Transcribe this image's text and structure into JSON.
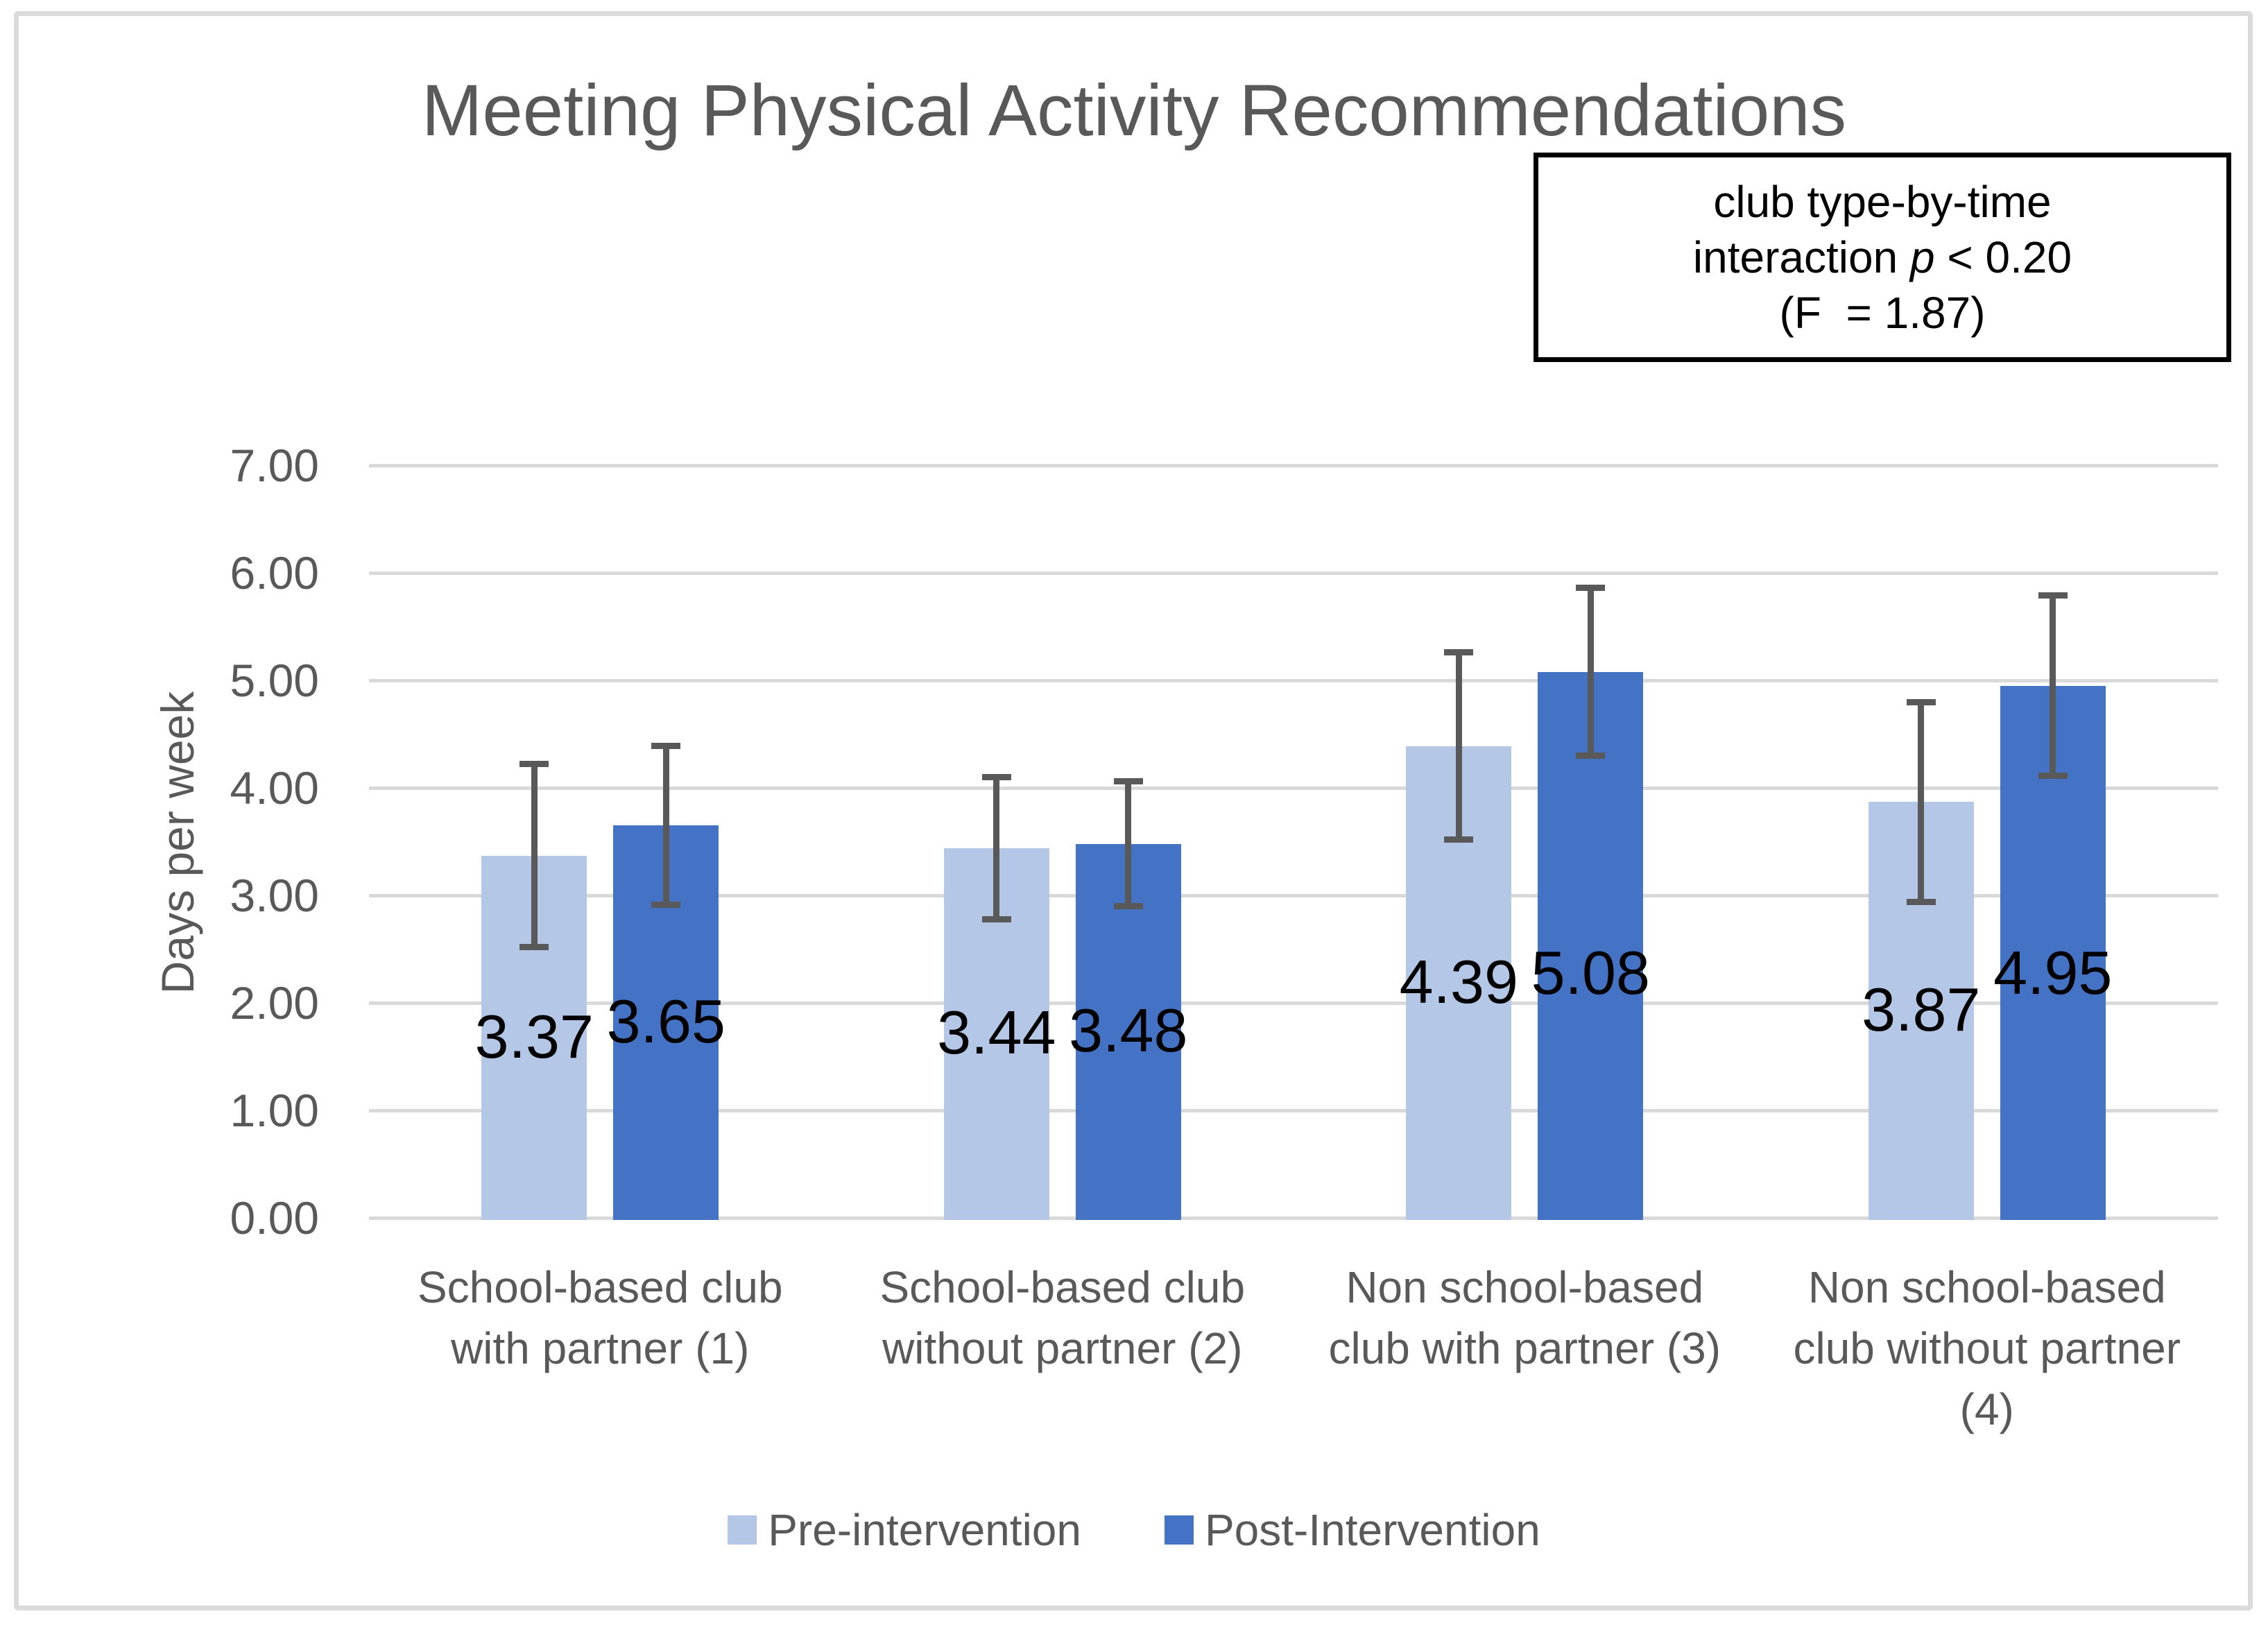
{
  "title": "Meeting Physical Activity Recommendations",
  "annotation": {
    "line1": "club type-by-time",
    "line2_pre": "interaction ",
    "line2_italic": "p",
    "line2_post": " < 0.20",
    "line3": "(F  = 1.87)"
  },
  "chart_data": {
    "type": "bar",
    "title": "Meeting Physical Activity Recommendations",
    "xlabel": "",
    "ylabel": "Days per week",
    "ylim": [
      0,
      7
    ],
    "ytick_labels": [
      "0.00",
      "1.00",
      "2.00",
      "3.00",
      "4.00",
      "5.00",
      "6.00",
      "7.00"
    ],
    "grid": true,
    "legend_position": "bottom",
    "categories": [
      "School-based club with partner (1)",
      "School-based club without partner (2)",
      "Non school-based club with partner (3)",
      "Non school-based club without partner (4)"
    ],
    "categories_wrapped": [
      [
        "School-based club",
        "with partner (1)"
      ],
      [
        "School-based club",
        "without partner (2)"
      ],
      [
        "Non school-based",
        "club with partner (3)"
      ],
      [
        "Non school-based",
        "club without partner",
        "(4)"
      ]
    ],
    "series": [
      {
        "name": "Pre-intervention",
        "color": "#B4C7E7",
        "values": [
          3.37,
          3.44,
          4.39,
          3.87
        ],
        "errors": [
          0.85,
          0.66,
          0.87,
          0.93
        ]
      },
      {
        "name": "Post-Intervention",
        "color": "#4472C4",
        "values": [
          3.65,
          3.48,
          5.08,
          4.95
        ],
        "errors": [
          0.74,
          0.58,
          0.78,
          0.84
        ]
      }
    ],
    "data_labels": [
      "3.37",
      "3.44",
      "4.39",
      "3.87",
      "3.65",
      "3.48",
      "5.08",
      "4.95"
    ],
    "annotation_text": "club type-by-time interaction p < 0.20 (F  = 1.87)"
  },
  "colors": {
    "pre_series": "#B4C7E7",
    "post_series": "#4472C4",
    "gridline": "#D9D9D9",
    "error_bar": "#595959",
    "axis_text": "#595959",
    "title_text": "#595959",
    "data_label_text": "#000000",
    "annotation_border": "#000000",
    "frame_border": "#DBDBDB"
  }
}
